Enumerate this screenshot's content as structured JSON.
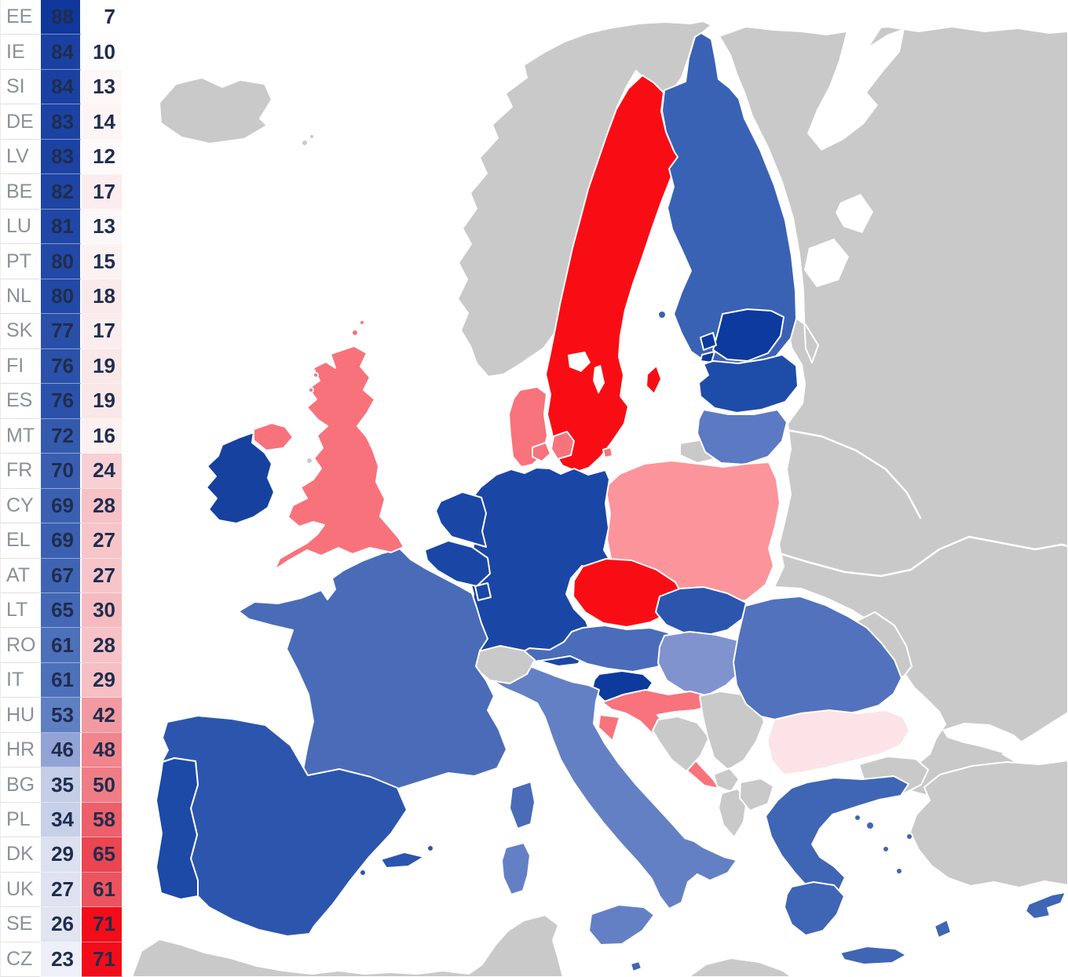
{
  "table": {
    "code_color": "#8A9099",
    "value_color": "#1F2D4E",
    "grid_color": "#E0E0E0",
    "rows": [
      {
        "code": "EE",
        "for": "88",
        "against": "7",
        "for_bg": "#10379C",
        "against_bg": "#FFFFFF"
      },
      {
        "code": "IE",
        "for": "84",
        "against": "10",
        "for_bg": "#1A41A2",
        "against_bg": "#FEFEFE"
      },
      {
        "code": "SI",
        "for": "84",
        "against": "13",
        "for_bg": "#1A41A2",
        "against_bg": "#FDF7F7"
      },
      {
        "code": "DE",
        "for": "83",
        "against": "14",
        "for_bg": "#1C43A3",
        "against_bg": "#FDF5F5"
      },
      {
        "code": "LV",
        "for": "83",
        "against": "12",
        "for_bg": "#1C43A3",
        "against_bg": "#FEFAFA"
      },
      {
        "code": "BE",
        "for": "82",
        "against": "17",
        "for_bg": "#1E45A4",
        "against_bg": "#FBEDEE"
      },
      {
        "code": "LU",
        "for": "81",
        "against": "13",
        "for_bg": "#2047A5",
        "against_bg": "#FDF7F7"
      },
      {
        "code": "PT",
        "for": "80",
        "against": "15",
        "for_bg": "#2249A6",
        "against_bg": "#FCF2F2"
      },
      {
        "code": "NL",
        "for": "80",
        "against": "18",
        "for_bg": "#2249A6",
        "against_bg": "#FBEAEB"
      },
      {
        "code": "SK",
        "for": "77",
        "against": "17",
        "for_bg": "#294FA9",
        "against_bg": "#FBEDEE"
      },
      {
        "code": "FI",
        "for": "76",
        "against": "19",
        "for_bg": "#2B51AA",
        "against_bg": "#FAE7E8"
      },
      {
        "code": "ES",
        "for": "76",
        "against": "19",
        "for_bg": "#2B51AA",
        "against_bg": "#FAE7E8"
      },
      {
        "code": "MT",
        "for": "72",
        "against": "16",
        "for_bg": "#345AAE",
        "against_bg": "#FCF0F0"
      },
      {
        "code": "FR",
        "for": "70",
        "against": "24",
        "for_bg": "#395EB1",
        "against_bg": "#F8D0D3"
      },
      {
        "code": "CY",
        "for": "69",
        "against": "28",
        "for_bg": "#3B60B2",
        "against_bg": "#F7C2C6"
      },
      {
        "code": "EL",
        "for": "69",
        "against": "27",
        "for_bg": "#3B60B2",
        "against_bg": "#F7C5C9"
      },
      {
        "code": "AT",
        "for": "67",
        "against": "27",
        "for_bg": "#4064B4",
        "against_bg": "#F7C5C9"
      },
      {
        "code": "LT",
        "for": "65",
        "against": "30",
        "for_bg": "#4468B6",
        "against_bg": "#F6BBC0"
      },
      {
        "code": "RO",
        "for": "61",
        "against": "28",
        "for_bg": "#4D70BB",
        "against_bg": "#F7C2C6"
      },
      {
        "code": "IT",
        "for": "61",
        "against": "29",
        "for_bg": "#4D70BB",
        "against_bg": "#F6BFC3"
      },
      {
        "code": "HU",
        "for": "53",
        "against": "42",
        "for_bg": "#5F7FC3",
        "against_bg": "#F29AA1"
      },
      {
        "code": "HR",
        "for": "46",
        "against": "48",
        "for_bg": "#92A4D6",
        "against_bg": "#F0858D"
      },
      {
        "code": "BG",
        "for": "35",
        "against": "50",
        "for_bg": "#C4CEE7",
        "against_bg": "#EF7D86"
      },
      {
        "code": "PL",
        "for": "34",
        "against": "58",
        "for_bg": "#C6D0E8",
        "against_bg": "#ED5F6A"
      },
      {
        "code": "DK",
        "for": "29",
        "against": "65",
        "for_bg": "#DCE1F0",
        "against_bg": "#EB4552"
      },
      {
        "code": "UK",
        "for": "27",
        "against": "61",
        "for_bg": "#DFE3F1",
        "against_bg": "#EC535F"
      },
      {
        "code": "SE",
        "for": "26",
        "against": "71",
        "for_bg": "#E1E5F2",
        "against_bg": "#F20D1A"
      },
      {
        "code": "CZ",
        "for": "23",
        "against": "71",
        "for_bg": "#EDF0F8",
        "against_bg": "#F20D1A"
      }
    ]
  },
  "map": {
    "sea": "#FFFFFF",
    "border": "#FFFFFF",
    "non_eu_fill": "#C9C9C9",
    "fills": {
      "EE": "#0C3A9D",
      "IE": "#16419F",
      "SI": "#0C3A9D",
      "DE": "#1A47A6",
      "LV": "#1E4CA9",
      "BE": "#1A47A6",
      "LU": "#1A47A6",
      "PT": "#1C4AA6",
      "NL": "#1A47A6",
      "SK": "#2C55AE",
      "FI": "#3A62B4",
      "ES": "#2C55AD",
      "MT": "#3F65B5",
      "FR": "#4A6CB8",
      "CY": "#3F65B5",
      "EL": "#3F65B5",
      "AT": "#4A6CBA",
      "LT": "#5B7AC3",
      "RO": "#5272BD",
      "IT": "#6480C5",
      "HU": "#8093CF",
      "HR": "#F8737B",
      "BG": "#FBE3E7",
      "PL": "#FB959B",
      "DK": "#F8737B",
      "UK": "#F8727B",
      "SE": "#F90D15",
      "CZ": "#F90D15"
    }
  },
  "chart_data": {
    "type": "choropleth",
    "region": "Europe",
    "categories": [
      "EE",
      "IE",
      "SI",
      "DE",
      "LV",
      "BE",
      "LU",
      "PT",
      "NL",
      "SK",
      "FI",
      "ES",
      "MT",
      "FR",
      "CY",
      "EL",
      "AT",
      "LT",
      "RO",
      "IT",
      "HU",
      "HR",
      "BG",
      "PL",
      "DK",
      "UK",
      "SE",
      "CZ"
    ],
    "series": [
      {
        "name": "column_1_blue",
        "values": [
          88,
          84,
          84,
          83,
          83,
          82,
          81,
          80,
          80,
          77,
          76,
          76,
          72,
          70,
          69,
          69,
          67,
          65,
          61,
          61,
          53,
          46,
          35,
          34,
          29,
          27,
          26,
          23
        ]
      },
      {
        "name": "column_2_red",
        "values": [
          7,
          10,
          13,
          14,
          12,
          17,
          13,
          15,
          18,
          17,
          19,
          19,
          16,
          24,
          28,
          27,
          27,
          30,
          28,
          29,
          42,
          48,
          50,
          58,
          65,
          61,
          71,
          71
        ]
      }
    ],
    "legend_position": "none",
    "layout": "value table top-left; EU members shaded blue/red on map; non-EU countries gray; sea white"
  }
}
